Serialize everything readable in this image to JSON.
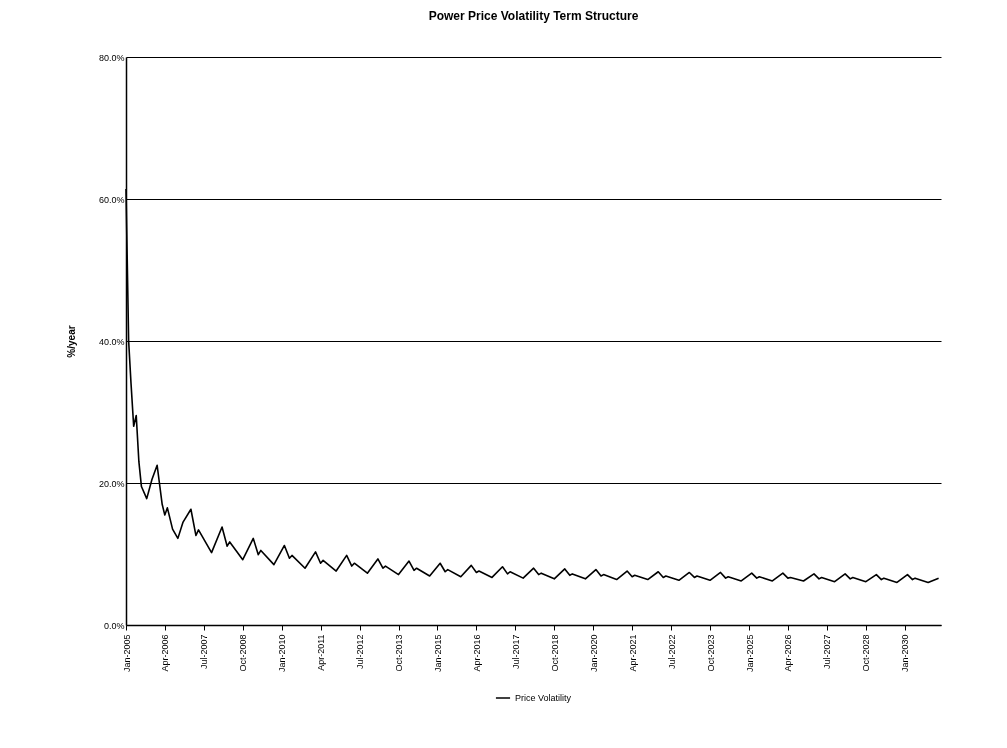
{
  "chart_data": {
    "type": "line",
    "title": "Power Price Volatility Term Structure",
    "ylabel": "%/year",
    "ylim": [
      0,
      80
    ],
    "yticks": [
      {
        "value": 0,
        "label": "0.0%"
      },
      {
        "value": 20,
        "label": "20.0%"
      },
      {
        "value": 40,
        "label": "40.0%"
      },
      {
        "value": 60,
        "label": "60.0%"
      },
      {
        "value": 80,
        "label": "80.0%"
      }
    ],
    "xlim": [
      "2005-01",
      "2031-03"
    ],
    "xticks": [
      {
        "value": "2005-01",
        "label": "Jan-2005"
      },
      {
        "value": "2006-04",
        "label": "Apr-2006"
      },
      {
        "value": "2007-07",
        "label": "Jul-2007"
      },
      {
        "value": "2008-10",
        "label": "Oct-2008"
      },
      {
        "value": "2010-01",
        "label": "Jan-2010"
      },
      {
        "value": "2011-04",
        "label": "Apr-2011"
      },
      {
        "value": "2012-07",
        "label": "Jul-2012"
      },
      {
        "value": "2013-10",
        "label": "Oct-2013"
      },
      {
        "value": "2015-01",
        "label": "Jan-2015"
      },
      {
        "value": "2016-04",
        "label": "Apr-2016"
      },
      {
        "value": "2017-07",
        "label": "Jul-2017"
      },
      {
        "value": "2018-10",
        "label": "Oct-2018"
      },
      {
        "value": "2020-01",
        "label": "Jan-2020"
      },
      {
        "value": "2021-04",
        "label": "Apr-2021"
      },
      {
        "value": "2022-07",
        "label": "Jul-2022"
      },
      {
        "value": "2023-10",
        "label": "Oct-2023"
      },
      {
        "value": "2025-01",
        "label": "Jan-2025"
      },
      {
        "value": "2026-04",
        "label": "Apr-2026"
      },
      {
        "value": "2027-07",
        "label": "Jul-2027"
      },
      {
        "value": "2028-10",
        "label": "Oct-2028"
      },
      {
        "value": "2030-01",
        "label": "Jan-2030"
      }
    ],
    "grid": "y",
    "legend": "bottom",
    "marker": "none",
    "line_style": "solid",
    "x": [
      "2005-01",
      "2005-02",
      "2005-03",
      "2005-04",
      "2005-05",
      "2005-06",
      "2005-07",
      "2005-09",
      "2005-11",
      "2006-01",
      "2006-03",
      "2006-04",
      "2006-05",
      "2006-07",
      "2006-09",
      "2006-11",
      "2007-02",
      "2007-04",
      "2007-05",
      "2007-10",
      "2008-02",
      "2008-04",
      "2008-05",
      "2008-10",
      "2009-02",
      "2009-04",
      "2009-05",
      "2009-10",
      "2010-02",
      "2010-04",
      "2010-05",
      "2010-10",
      "2011-02",
      "2011-04",
      "2011-05",
      "2011-10",
      "2012-02",
      "2012-04",
      "2012-05",
      "2012-10",
      "2013-02",
      "2013-04",
      "2013-05",
      "2013-10",
      "2014-02",
      "2014-04",
      "2014-05",
      "2014-10",
      "2015-02",
      "2015-04",
      "2015-05",
      "2015-10",
      "2016-02",
      "2016-04",
      "2016-05",
      "2016-10",
      "2017-02",
      "2017-04",
      "2017-05",
      "2017-10",
      "2018-02",
      "2018-04",
      "2018-05",
      "2018-10",
      "2019-02",
      "2019-04",
      "2019-05",
      "2019-10",
      "2020-02",
      "2020-04",
      "2020-05",
      "2020-10",
      "2021-02",
      "2021-04",
      "2021-05",
      "2021-10",
      "2022-02",
      "2022-04",
      "2022-05",
      "2022-10",
      "2023-02",
      "2023-04",
      "2023-05",
      "2023-10",
      "2024-02",
      "2024-04",
      "2024-05",
      "2024-10",
      "2025-02",
      "2025-04",
      "2025-05",
      "2025-10",
      "2026-02",
      "2026-04",
      "2026-05",
      "2026-10",
      "2027-02",
      "2027-04",
      "2027-05",
      "2027-10",
      "2028-02",
      "2028-04",
      "2028-05",
      "2028-10",
      "2029-02",
      "2029-04",
      "2029-05",
      "2029-10",
      "2030-02",
      "2030-04",
      "2030-05",
      "2030-10",
      "2031-02"
    ],
    "series": [
      {
        "name": "Price Volatility",
        "color": "#000000",
        "values": [
          61.4,
          40,
          34,
          28,
          29.5,
          23,
          19.5,
          17.8,
          20.5,
          22.5,
          17,
          15.5,
          16.5,
          13.5,
          12.2,
          14.5,
          16.3,
          12.6,
          13.4,
          10.2,
          13.8,
          11.1,
          11.7,
          9.2,
          12.2,
          9.9,
          10.5,
          8.5,
          11.2,
          9.4,
          9.8,
          8.0,
          10.3,
          8.7,
          9.1,
          7.6,
          9.8,
          8.3,
          8.7,
          7.3,
          9.3,
          8.0,
          8.3,
          7.1,
          9.0,
          7.7,
          8.0,
          6.9,
          8.7,
          7.5,
          7.8,
          6.8,
          8.4,
          7.4,
          7.6,
          6.7,
          8.2,
          7.2,
          7.5,
          6.6,
          8.0,
          7.1,
          7.3,
          6.5,
          7.9,
          7.0,
          7.2,
          6.5,
          7.8,
          6.9,
          7.1,
          6.4,
          7.6,
          6.8,
          7.0,
          6.4,
          7.5,
          6.7,
          6.9,
          6.3,
          7.4,
          6.7,
          6.9,
          6.3,
          7.4,
          6.6,
          6.8,
          6.2,
          7.3,
          6.6,
          6.8,
          6.2,
          7.3,
          6.6,
          6.7,
          6.2,
          7.2,
          6.5,
          6.7,
          6.1,
          7.2,
          6.5,
          6.7,
          6.1,
          7.1,
          6.4,
          6.6,
          6.0,
          7.1,
          6.4,
          6.6,
          6.0,
          6.6
        ]
      }
    ]
  }
}
